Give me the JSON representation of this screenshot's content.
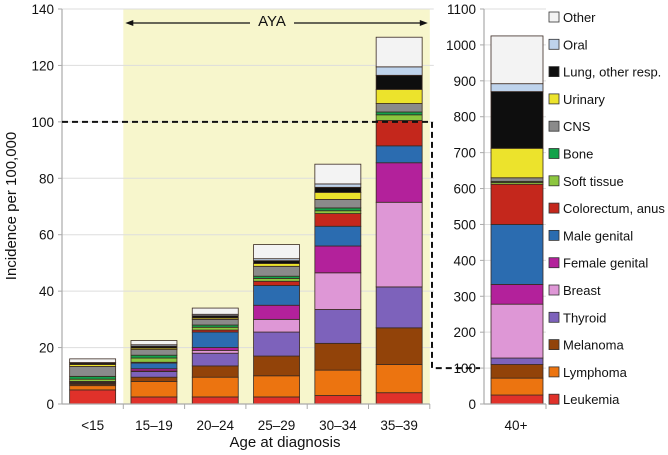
{
  "chart_data": {
    "type": "bar",
    "stacked": true,
    "ylabel": "Incidence per 100,000",
    "xlabel": "Age at diagnosis",
    "annotation": "AYA",
    "reference_line": 100,
    "panels": [
      {
        "name": "main",
        "categories": [
          "<15",
          "15–19",
          "20–24",
          "25–29",
          "30–34",
          "35–39"
        ],
        "ylim": [
          0,
          140
        ],
        "yticks": [
          0,
          20,
          40,
          60,
          80,
          100,
          120,
          140
        ],
        "shaded_categories": [
          "15–19",
          "20–24",
          "25–29",
          "30–34",
          "35–39"
        ]
      },
      {
        "name": "inset",
        "categories": [
          "40+"
        ],
        "ylim": [
          0,
          1100
        ],
        "yticks": [
          0,
          100,
          200,
          300,
          400,
          500,
          600,
          700,
          800,
          900,
          1000,
          1100
        ]
      }
    ],
    "series": [
      {
        "name": "Leukemia",
        "color": "#e0312a",
        "values": [
          5.0,
          2.5,
          2.5,
          2.5,
          3.0,
          4.0,
          25
        ]
      },
      {
        "name": "Lymphoma",
        "color": "#ec7410",
        "values": [
          1.5,
          5.5,
          7.0,
          7.5,
          9.0,
          10.0,
          47
        ]
      },
      {
        "name": "Melanoma",
        "color": "#924309",
        "values": [
          0.5,
          1.5,
          4.0,
          7.0,
          9.5,
          13.0,
          38
        ]
      },
      {
        "name": "Thyroid",
        "color": "#7d62bb",
        "values": [
          0.3,
          2.0,
          4.5,
          8.5,
          12.0,
          14.5,
          18
        ]
      },
      {
        "name": "Breast",
        "color": "#de97d6",
        "values": [
          0.0,
          0.2,
          1.0,
          4.5,
          13.0,
          30.0,
          150
        ]
      },
      {
        "name": "Female genital",
        "color": "#b3219b",
        "values": [
          0.2,
          0.8,
          1.0,
          5.0,
          9.5,
          14.0,
          55
        ]
      },
      {
        "name": "Male genital",
        "color": "#2b6cb0",
        "values": [
          0.3,
          2.0,
          5.5,
          7.0,
          7.0,
          6.0,
          167
        ]
      },
      {
        "name": "Colorectum, anus",
        "color": "#c4271c",
        "values": [
          0.2,
          0.3,
          0.7,
          1.5,
          4.5,
          9.0,
          112
        ]
      },
      {
        "name": "Soft tissue",
        "color": "#8cc63f",
        "values": [
          0.8,
          1.5,
          1.0,
          1.0,
          1.0,
          2.0,
          5
        ]
      },
      {
        "name": "Bone",
        "color": "#12a24a",
        "values": [
          1.0,
          1.0,
          0.8,
          0.8,
          1.0,
          1.0,
          3
        ]
      },
      {
        "name": "CNS",
        "color": "#8a8a8a",
        "values": [
          3.5,
          2.0,
          2.0,
          3.5,
          3.0,
          3.0,
          10
        ]
      },
      {
        "name": "Urinary",
        "color": "#ece32c",
        "values": [
          0.7,
          0.5,
          0.5,
          1.0,
          2.5,
          5.0,
          82
        ]
      },
      {
        "name": "Lung, other resp.",
        "color": "#0e0e0e",
        "values": [
          0.5,
          0.7,
          0.8,
          1.0,
          1.8,
          5.0,
          158
        ]
      },
      {
        "name": "Oral",
        "color": "#bed3ec",
        "values": [
          0.2,
          0.5,
          0.5,
          0.7,
          1.2,
          3.0,
          22
        ]
      },
      {
        "name": "Other",
        "color": "#f3f3f3",
        "values": [
          1.3,
          1.5,
          2.2,
          5.0,
          7.0,
          10.5,
          133
        ]
      }
    ],
    "legend": {
      "position": "right",
      "order": [
        "Other",
        "Oral",
        "Lung, other resp.",
        "Urinary",
        "CNS",
        "Bone",
        "Soft tissue",
        "Colorectum, anus",
        "Male genital",
        "Female genital",
        "Breast",
        "Thyroid",
        "Melanoma",
        "Lymphoma",
        "Leukemia"
      ]
    },
    "colors": {
      "aya_band": "#f7f6cc",
      "gridline": "#dddddd",
      "axis": "#aaaaaa"
    }
  }
}
